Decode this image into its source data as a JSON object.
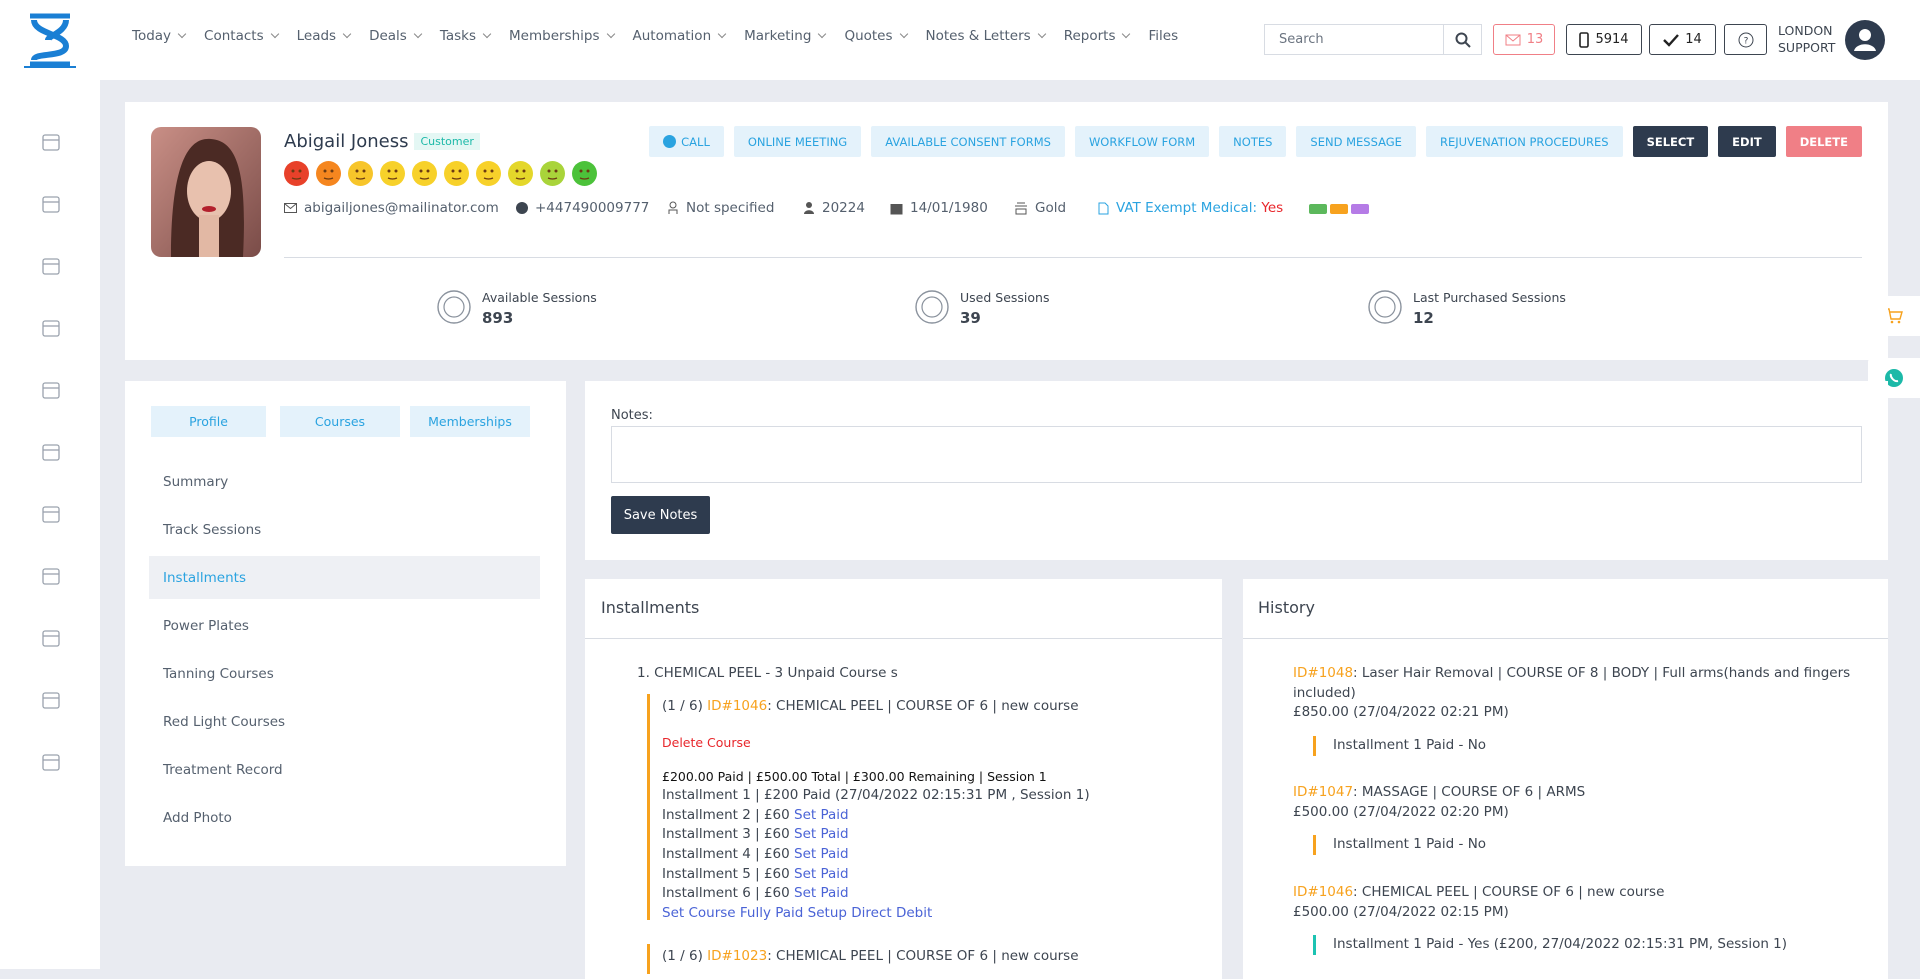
{
  "header": {
    "nav": [
      "Today",
      "Contacts",
      "Leads",
      "Deals",
      "Tasks",
      "Memberships",
      "Automation",
      "Marketing",
      "Quotes",
      "Notes & Letters",
      "Reports",
      "Files"
    ],
    "search_placeholder": "Search",
    "mail_count": 13,
    "phone_count": 5914,
    "task_count": 14,
    "user": [
      "LONDON",
      "SUPPORT"
    ]
  },
  "profile": {
    "name": "Abigail Joness",
    "tag": "Customer",
    "actions": [
      "CALL",
      "ONLINE MEETING",
      "AVAILABLE CONSENT FORMS",
      "WORKFLOW FORM",
      "NOTES",
      "SEND MESSAGE",
      "REJUVENATION PROCEDURES",
      "SELECT",
      "EDIT",
      "DELETE"
    ],
    "email": "abigailjones@mailinator.com",
    "phone": "+447490009777",
    "gender": "Not specified",
    "id": 20224,
    "dob": "14/01/1980",
    "tier": "Gold",
    "vat_label": "VAT Exempt Medical:",
    "vat_value": "Yes",
    "stats": [
      {
        "label": "Available Sessions",
        "value": 893
      },
      {
        "label": "Used Sessions",
        "value": 39
      },
      {
        "label": "Last Purchased Sessions",
        "value": 12
      }
    ]
  },
  "tabs": [
    "Profile",
    "Courses",
    "Memberships"
  ],
  "menu": [
    "Summary",
    "Track Sessions",
    "Installments",
    "Power Plates",
    "Tanning Courses",
    "Red Light Courses",
    "Treatment Record",
    "Add Photo"
  ],
  "notes": {
    "label": "Notes:",
    "button": "Save Notes"
  },
  "installments": {
    "title": "Installments",
    "group": "1. CHEMICAL PEEL - 3 Unpaid Course s",
    "courses": [
      {
        "prefix": "(1 / 6)",
        "id": "ID#1046",
        "desc": ": CHEMICAL PEEL | COURSE OF 6 | new course",
        "delete": "Delete Course",
        "summary": "£200.00 Paid | £500.00 Total | £300.00 Remaining | Session 1",
        "lines": [
          {
            "text": "Installment 1 | £200 Paid (27/04/2022 02:15:31 PM , Session 1)"
          },
          {
            "text": "Installment 2 | £60",
            "link": "Set Paid"
          },
          {
            "text": "Installment 3 | £60",
            "link": "Set Paid"
          },
          {
            "text": "Installment 4 | £60",
            "link": "Set Paid"
          },
          {
            "text": "Installment 5 | £60",
            "link": "Set Paid"
          },
          {
            "text": "Installment 6 | £60",
            "link": "Set Paid"
          }
        ],
        "links": [
          "Set Course Fully Paid",
          "Setup Direct Debit"
        ]
      },
      {
        "prefix": "(1 / 6)",
        "id": "ID#1023",
        "desc": ": CHEMICAL PEEL | COURSE OF 6 | new course"
      }
    ]
  },
  "history": {
    "title": "History",
    "entries": [
      {
        "id": "ID#1048",
        "desc": ": Laser Hair Removal | COURSE OF 8 | BODY | Full arms(hands and fingers included)",
        "amount": "£850.00 (27/04/2022 02:21 PM)",
        "installment": "Installment 1 Paid - No"
      },
      {
        "id": "ID#1047",
        "desc": ": MASSAGE | COURSE OF 6 | ARMS",
        "amount": "£500.00 (27/04/2022 02:20 PM)",
        "installment": "Installment 1 Paid - No"
      },
      {
        "id": "ID#1046",
        "desc": ": CHEMICAL PEEL | COURSE OF 6 | new course",
        "amount": "£500.00 (27/04/2022 02:15 PM)",
        "installment": "Installment 1 Paid - Yes (£200, 27/04/2022 02:15:31 PM, Session 1)"
      }
    ]
  }
}
